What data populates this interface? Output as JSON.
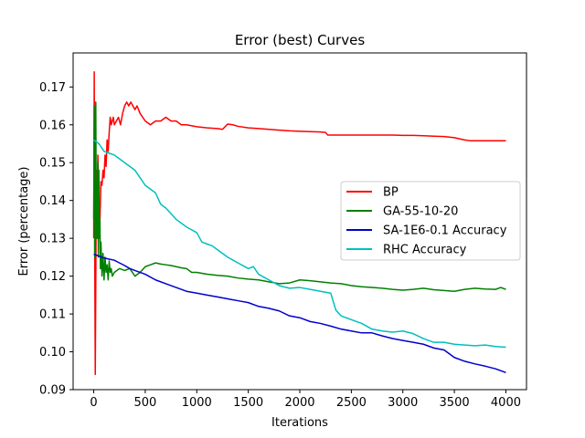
{
  "chart_data": {
    "type": "line",
    "title": "Error (best) Curves",
    "xlabel": "Iterations",
    "ylabel": "Error (percentage)",
    "xlim": [
      -200,
      4200
    ],
    "ylim": [
      0.09,
      0.179
    ],
    "xticks": [
      0,
      500,
      1000,
      1500,
      2000,
      2500,
      3000,
      3500,
      4000
    ],
    "yticks": [
      0.09,
      0.1,
      0.11,
      0.12,
      0.13,
      0.14,
      0.15,
      0.16,
      0.17
    ],
    "ytick_labels": [
      "0.09",
      "0.10",
      "0.11",
      "0.12",
      "0.13",
      "0.14",
      "0.15",
      "0.16",
      "0.17"
    ],
    "grid": false,
    "legend_position": "center-right",
    "series": [
      {
        "name": "BP",
        "color": "#ff0000",
        "x": [
          0,
          5,
          10,
          15,
          20,
          25,
          30,
          40,
          50,
          60,
          70,
          80,
          90,
          100,
          110,
          120,
          130,
          140,
          150,
          160,
          170,
          180,
          190,
          200,
          220,
          240,
          260,
          280,
          300,
          320,
          340,
          360,
          380,
          400,
          420,
          450,
          500,
          550,
          600,
          650,
          700,
          750,
          800,
          850,
          900,
          1000,
          1100,
          1200,
          1250,
          1300,
          1350,
          1400,
          1500,
          1600,
          1700,
          1800,
          1900,
          2000,
          2100,
          2200,
          2250,
          2270,
          2300,
          2400,
          2500,
          2600,
          2700,
          2800,
          2900,
          3000,
          3100,
          3200,
          3300,
          3400,
          3500,
          3550,
          3600,
          3650,
          3700,
          3800,
          3900,
          4000
        ],
        "values": [
          0.13,
          0.174,
          0.125,
          0.094,
          0.118,
          0.148,
          0.13,
          0.152,
          0.14,
          0.135,
          0.145,
          0.144,
          0.148,
          0.146,
          0.152,
          0.149,
          0.156,
          0.153,
          0.158,
          0.162,
          0.16,
          0.161,
          0.162,
          0.16,
          0.161,
          0.162,
          0.16,
          0.163,
          0.165,
          0.166,
          0.165,
          0.166,
          0.165,
          0.164,
          0.165,
          0.163,
          0.161,
          0.16,
          0.161,
          0.161,
          0.162,
          0.161,
          0.161,
          0.16,
          0.16,
          0.1595,
          0.1592,
          0.159,
          0.1588,
          0.1602,
          0.16,
          0.1596,
          0.1592,
          0.159,
          0.1588,
          0.1586,
          0.1584,
          0.1583,
          0.1582,
          0.1581,
          0.158,
          0.1573,
          0.1573,
          0.1573,
          0.1573,
          0.1573,
          0.1573,
          0.1573,
          0.1573,
          0.1572,
          0.1572,
          0.1571,
          0.157,
          0.1569,
          0.1566,
          0.1563,
          0.156,
          0.1558,
          0.1558,
          0.1558,
          0.1558,
          0.1558
        ]
      },
      {
        "name": "GA-55-10-20",
        "color": "#008000",
        "x": [
          0,
          5,
          10,
          15,
          20,
          25,
          30,
          35,
          40,
          45,
          50,
          55,
          60,
          65,
          70,
          80,
          90,
          100,
          110,
          120,
          130,
          140,
          150,
          160,
          170,
          180,
          200,
          250,
          300,
          350,
          400,
          450,
          500,
          550,
          600,
          650,
          700,
          750,
          800,
          850,
          900,
          950,
          1000,
          1100,
          1200,
          1300,
          1400,
          1500,
          1600,
          1700,
          1800,
          1900,
          2000,
          2100,
          2200,
          2300,
          2400,
          2500,
          2600,
          2700,
          2800,
          2900,
          3000,
          3100,
          3200,
          3300,
          3400,
          3500,
          3600,
          3700,
          3800,
          3900,
          3950,
          4000
        ],
        "values": [
          0.135,
          0.165,
          0.125,
          0.14,
          0.166,
          0.13,
          0.145,
          0.13,
          0.15,
          0.125,
          0.148,
          0.13,
          0.135,
          0.122,
          0.129,
          0.12,
          0.126,
          0.119,
          0.125,
          0.121,
          0.123,
          0.119,
          0.124,
          0.121,
          0.122,
          0.12,
          0.121,
          0.122,
          0.1215,
          0.122,
          0.12,
          0.121,
          0.1225,
          0.123,
          0.1235,
          0.1232,
          0.123,
          0.1228,
          0.1225,
          0.1222,
          0.122,
          0.121,
          0.121,
          0.1205,
          0.1202,
          0.12,
          0.1195,
          0.1192,
          0.119,
          0.1185,
          0.118,
          0.1182,
          0.119,
          0.1188,
          0.1185,
          0.1182,
          0.118,
          0.1175,
          0.1172,
          0.117,
          0.1168,
          0.1165,
          0.1163,
          0.1165,
          0.1168,
          0.1164,
          0.1162,
          0.116,
          0.1165,
          0.1168,
          0.1166,
          0.1165,
          0.117,
          0.1165
        ]
      },
      {
        "name": "SA-1E6-0.1 Accuracy",
        "color": "#0000cc",
        "x": [
          0,
          50,
          100,
          150,
          200,
          250,
          300,
          350,
          400,
          500,
          600,
          700,
          800,
          900,
          1000,
          1100,
          1200,
          1300,
          1400,
          1500,
          1600,
          1700,
          1800,
          1900,
          2000,
          2100,
          2200,
          2300,
          2400,
          2500,
          2600,
          2700,
          2800,
          2900,
          3000,
          3100,
          3200,
          3300,
          3400,
          3450,
          3500,
          3600,
          3700,
          3800,
          3900,
          4000
        ],
        "values": [
          0.1258,
          0.1253,
          0.1248,
          0.1245,
          0.1242,
          0.1235,
          0.1228,
          0.122,
          0.1215,
          0.1205,
          0.119,
          0.118,
          0.117,
          0.116,
          0.1155,
          0.115,
          0.1145,
          0.114,
          0.1135,
          0.113,
          0.112,
          0.1115,
          0.1108,
          0.1095,
          0.109,
          0.108,
          0.1075,
          0.1068,
          0.106,
          0.1055,
          0.105,
          0.105,
          0.1042,
          0.1035,
          0.103,
          0.1025,
          0.102,
          0.101,
          0.1005,
          0.0995,
          0.0985,
          0.0975,
          0.0968,
          0.0962,
          0.0955,
          0.0945
        ]
      },
      {
        "name": "RHC Accuracy",
        "color": "#00bfbf",
        "x": [
          0,
          50,
          100,
          150,
          200,
          300,
          400,
          450,
          500,
          600,
          650,
          700,
          800,
          900,
          1000,
          1050,
          1100,
          1150,
          1200,
          1300,
          1400,
          1500,
          1550,
          1600,
          1700,
          1800,
          1900,
          2000,
          2100,
          2200,
          2300,
          2350,
          2400,
          2500,
          2600,
          2700,
          2800,
          2900,
          3000,
          3100,
          3200,
          3300,
          3400,
          3500,
          3600,
          3700,
          3800,
          3900,
          4000
        ],
        "values": [
          0.156,
          0.155,
          0.153,
          0.1525,
          0.152,
          0.15,
          0.148,
          0.146,
          0.144,
          0.142,
          0.139,
          0.138,
          0.135,
          0.133,
          0.1315,
          0.129,
          0.1285,
          0.128,
          0.127,
          0.125,
          0.1235,
          0.122,
          0.1225,
          0.1205,
          0.119,
          0.1175,
          0.1168,
          0.117,
          0.1165,
          0.116,
          0.1155,
          0.111,
          0.1095,
          0.1085,
          0.1075,
          0.106,
          0.1055,
          0.1052,
          0.1055,
          0.1048,
          0.1035,
          0.1025,
          0.1025,
          0.102,
          0.1018,
          0.1016,
          0.1018,
          0.1014,
          0.1012
        ]
      }
    ]
  }
}
